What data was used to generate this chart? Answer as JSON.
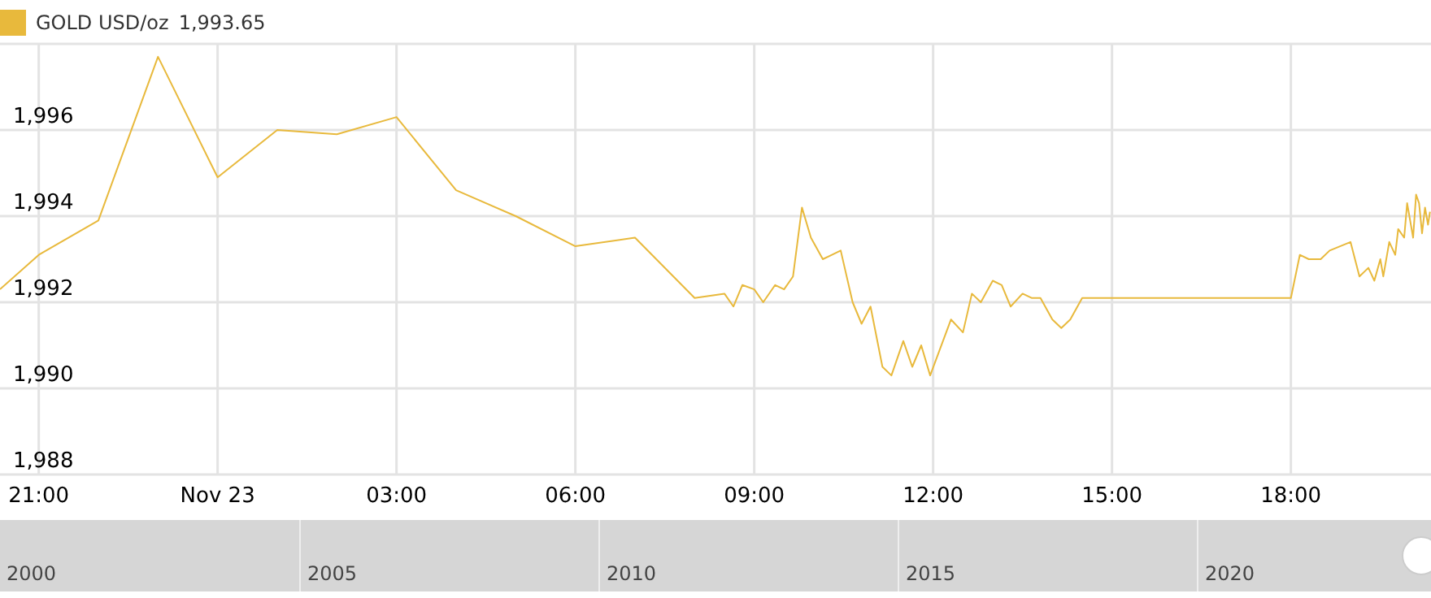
{
  "chart_data": {
    "type": "line",
    "legend": "top left",
    "grid": true,
    "marker": "none",
    "line_style": "solid",
    "xlim": [
      "--11-22T20:21",
      "--11-23T20:21"
    ],
    "xticks": [
      {
        "value": "--11-22T21:00",
        "label": "21:00"
      },
      {
        "value": "--11-23T00:00",
        "label": "Nov 23"
      },
      {
        "value": "--11-23T03:00",
        "label": "03:00"
      },
      {
        "value": "--11-23T06:00",
        "label": "06:00"
      },
      {
        "value": "--11-23T09:00",
        "label": "09:00"
      },
      {
        "value": "--11-23T12:00",
        "label": "12:00"
      },
      {
        "value": "--11-23T15:00",
        "label": "15:00"
      },
      {
        "value": "--11-23T18:00",
        "label": "18:00"
      }
    ],
    "ylim": [
      1988,
      1998
    ],
    "yticks": [
      {
        "value": 1988,
        "label": "1,988"
      },
      {
        "value": 1990,
        "label": "1,990"
      },
      {
        "value": 1992,
        "label": "1,992"
      },
      {
        "value": 1994,
        "label": "1,994"
      },
      {
        "value": 1996,
        "label": "1,996"
      },
      {
        "value": 1998,
        "label": null
      }
    ],
    "annotations": [
      "1,993.65",
      "2000",
      "2005",
      "2010",
      "2015",
      "2020"
    ],
    "series": [
      {
        "name": "GOLD USD/oz",
        "color": "#e8b93c",
        "x": [
          "--11-22T20:21",
          "--11-22T21:00",
          "--11-22T22:00",
          "--11-22T23:00",
          "--11-23T00:00",
          "--11-23T01:00",
          "--11-23T02:00",
          "--11-23T03:00",
          "--11-23T04:00",
          "--11-23T05:00",
          "--11-23T06:00",
          "--11-23T07:00",
          "--11-23T08:00",
          "--11-23T08:30",
          "--11-23T08:39",
          "--11-23T08:48",
          "--11-23T09:00",
          "--11-23T09:09",
          "--11-23T09:21",
          "--11-23T09:30",
          "--11-23T09:39",
          "--11-23T09:48",
          "--11-23T09:57",
          "--11-23T10:09",
          "--11-23T10:27",
          "--11-23T10:39",
          "--11-23T10:48",
          "--11-23T10:57",
          "--11-23T11:09",
          "--11-23T11:18",
          "--11-23T11:30",
          "--11-23T11:39",
          "--11-23T11:48",
          "--11-23T11:57",
          "--11-23T12:18",
          "--11-23T12:30",
          "--11-23T12:39",
          "--11-23T12:48",
          "--11-23T13:00",
          "--11-23T13:09",
          "--11-23T13:18",
          "--11-23T13:30",
          "--11-23T13:39",
          "--11-23T13:48",
          "--11-23T14:00",
          "--11-23T14:09",
          "--11-23T14:18",
          "--11-23T14:30",
          "--11-23T18:00",
          "--11-23T18:09",
          "--11-23T18:18",
          "--11-23T18:30",
          "--11-23T18:39",
          "--11-23T19:00",
          "--11-23T19:09",
          "--11-23T19:18",
          "--11-23T19:24",
          "--11-23T19:30",
          "--11-23T19:33",
          "--11-23T19:39",
          "--11-23T19:45",
          "--11-23T19:48",
          "--11-23T19:54",
          "--11-23T19:57",
          "--11-23T20:03",
          "--11-23T20:06",
          "--11-23T20:09",
          "--11-23T20:12",
          "--11-23T20:15",
          "--11-23T20:18",
          "--11-23T20:20"
        ],
        "values": [
          1992.3,
          1993.1,
          1993.9,
          1997.7,
          1994.9,
          1996.0,
          1995.9,
          1996.3,
          1994.6,
          1994.0,
          1993.3,
          1993.5,
          1992.1,
          1992.2,
          1991.9,
          1992.4,
          1992.3,
          1992.0,
          1992.4,
          1992.3,
          1992.6,
          1994.2,
          1993.5,
          1993.0,
          1993.2,
          1992.0,
          1991.5,
          1991.9,
          1990.5,
          1990.3,
          1991.1,
          1990.5,
          1991.0,
          1990.3,
          1991.6,
          1991.3,
          1992.2,
          1992.0,
          1992.5,
          1992.4,
          1991.9,
          1992.2,
          1992.1,
          1992.1,
          1991.6,
          1991.4,
          1991.6,
          1992.1,
          1992.1,
          1993.1,
          1993.0,
          1993.0,
          1993.2,
          1993.4,
          1992.6,
          1992.8,
          1992.5,
          1993.0,
          1992.6,
          1993.4,
          1993.1,
          1993.7,
          1993.5,
          1994.3,
          1993.5,
          1994.5,
          1994.3,
          1993.6,
          1994.2,
          1993.8,
          1994.1
        ]
      }
    ]
  }
}
